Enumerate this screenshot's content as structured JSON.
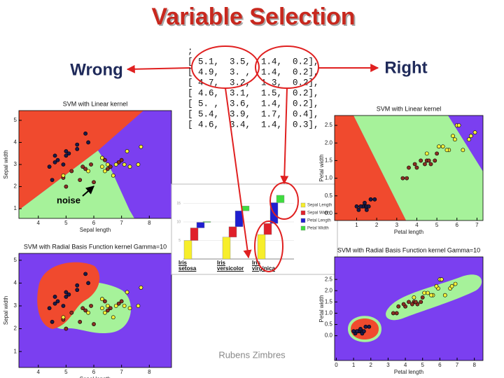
{
  "title": "Variable Selection",
  "wrong": "Wrong",
  "right": "Right",
  "noise": "noise",
  "author": "Rubens Zimbres",
  "code": [
    ";",
    "[ 5.1,  3.5,  1.4,  0.2],",
    "[ 4.9,  3. ,  1.4,  0.2],",
    "[ 4.7,  3.2,  1.3,  0.2],",
    "[ 4.6,  3.1,  1.5,  0.2],",
    "[ 5. ,  3.6,  1.4,  0.2],",
    "[ 5.4,  3.9,  1.7,  0.4],",
    "[ 4.6,  3.4,  1.4,  0.3],"
  ],
  "chart_data": [
    {
      "type": "scatter",
      "title": "SVM with Linear kernel",
      "x_label": "Sepal length",
      "y_label": "Sepal width",
      "xlim": [
        3.3,
        8.8
      ],
      "ylim": [
        0.56,
        5.44
      ],
      "xticks": [
        4,
        5,
        6,
        7,
        8
      ],
      "yticks": [
        1,
        2,
        3,
        4,
        5
      ],
      "series": [
        {
          "color": "#1a1a4a",
          "x": [
            5.1,
            4.9,
            4.7,
            4.6,
            5.0,
            5.4,
            4.6,
            5.0,
            4.4,
            5.4,
            5.8,
            5.7,
            4.5
          ],
          "values": [
            3.5,
            3.0,
            3.2,
            3.1,
            3.6,
            3.9,
            3.4,
            3.4,
            2.9,
            3.7,
            4.0,
            4.4,
            2.3
          ]
        },
        {
          "color": "#8b2f23",
          "x": [
            7.0,
            6.4,
            6.9,
            5.5,
            6.5,
            5.7,
            6.3,
            4.9,
            6.6,
            5.2,
            5.0,
            5.9,
            6.0,
            5.6
          ],
          "values": [
            3.2,
            3.2,
            3.1,
            2.3,
            2.8,
            2.8,
            3.3,
            2.4,
            2.9,
            2.7,
            2.0,
            3.0,
            2.2,
            2.9
          ]
        },
        {
          "color": "#f4f03a",
          "x": [
            6.3,
            5.8,
            7.1,
            6.3,
            6.5,
            7.6,
            4.9,
            7.3,
            6.7,
            7.2,
            7.7,
            6.4,
            6.8
          ],
          "values": [
            3.3,
            2.7,
            3.0,
            2.9,
            3.0,
            3.0,
            2.5,
            2.9,
            2.5,
            3.6,
            3.8,
            2.7,
            3.0
          ]
        }
      ]
    },
    {
      "type": "scatter",
      "title": "SVM with Radial Basis Function kernel Gamma=10",
      "xlim": [
        3.3,
        8.8
      ],
      "ylim": [
        0.3,
        5.3
      ],
      "xticks": [
        4,
        5,
        6,
        7,
        8
      ],
      "yticks": [
        1,
        2,
        3,
        4,
        5
      ],
      "x_label": "Sepal length",
      "y_label": "Sepal width",
      "series": [
        {
          "color": "#1a1a4a",
          "x": [
            5.1,
            4.9,
            4.7,
            4.6,
            5.0,
            5.4,
            4.6,
            5.0,
            4.4,
            5.4,
            5.8,
            5.7,
            4.5
          ],
          "values": [
            3.5,
            3.0,
            3.2,
            3.1,
            3.6,
            3.9,
            3.4,
            3.4,
            2.9,
            3.7,
            4.0,
            4.4,
            2.3
          ]
        },
        {
          "color": "#8b2f23",
          "x": [
            7.0,
            6.4,
            6.9,
            5.5,
            6.5,
            5.7,
            6.3,
            4.9,
            6.6,
            5.2,
            5.0,
            5.9,
            6.0,
            5.6
          ],
          "values": [
            3.2,
            3.2,
            3.1,
            2.3,
            2.8,
            2.8,
            3.3,
            2.4,
            2.9,
            2.7,
            2.0,
            3.0,
            2.2,
            2.9
          ]
        },
        {
          "color": "#f4f03a",
          "x": [
            6.3,
            5.8,
            7.1,
            6.3,
            6.5,
            7.6,
            4.9,
            7.3,
            6.7,
            7.2,
            7.7,
            6.4,
            6.8
          ],
          "values": [
            3.3,
            2.7,
            3.0,
            2.9,
            3.0,
            3.0,
            2.5,
            2.9,
            2.5,
            3.6,
            3.8,
            2.7,
            3.0
          ]
        }
      ]
    },
    {
      "type": "bar",
      "categories": [
        "Iris setosa",
        "Iris versicolor",
        "Iris virginica"
      ],
      "ylim": [
        0,
        17
      ],
      "yticks": [
        5,
        10,
        15
      ],
      "series": [
        {
          "name": "Sepal Length",
          "color": "#f7ee2a",
          "values": [
            5.0,
            5.9,
            6.6
          ]
        },
        {
          "name": "Sepal Width",
          "color": "#e0202a",
          "values": [
            3.4,
            2.8,
            3.0
          ]
        },
        {
          "name": "Petal Length",
          "color": "#1f1fd0",
          "values": [
            1.5,
            4.3,
            5.6
          ]
        },
        {
          "name": "Petal Width",
          "color": "#3fdc3f",
          "values": [
            0.2,
            1.3,
            2.0
          ]
        }
      ]
    },
    {
      "type": "scatter",
      "title": "SVM with Linear kernel",
      "x_label": "Petal length",
      "y_label": "Petal width",
      "xlim": [
        -0.1,
        7.3
      ],
      "ylim": [
        -0.2,
        2.78
      ],
      "xticks": [
        1,
        2,
        3,
        4,
        5,
        6,
        7
      ],
      "yticks": [
        {
          "value": 0,
          "label": "0.0"
        },
        {
          "value": 0.5,
          "label": "0.5"
        },
        {
          "value": 1,
          "label": "1.0"
        },
        {
          "value": 1.5,
          "label": "1.5"
        },
        {
          "value": 2,
          "label": "2.0"
        },
        {
          "value": 2.5,
          "label": "2.5"
        }
      ],
      "series": [
        {
          "color": "#1a1a4a",
          "x": [
            1.4,
            1.3,
            1.5,
            1.4,
            1.7,
            1.5,
            1.6,
            1.1,
            1.2,
            1.9,
            1.0
          ],
          "values": [
            0.2,
            0.2,
            0.2,
            0.3,
            0.4,
            0.1,
            0.2,
            0.1,
            0.2,
            0.4,
            0.2
          ]
        },
        {
          "color": "#8b2f23",
          "x": [
            4.7,
            4.5,
            4.9,
            4.0,
            4.6,
            3.3,
            3.9,
            3.5,
            4.2,
            3.6,
            4.4,
            5.0
          ],
          "values": [
            1.4,
            1.5,
            1.5,
            1.3,
            1.5,
            1.0,
            1.4,
            1.0,
            1.5,
            1.3,
            1.4,
            1.7
          ]
        },
        {
          "color": "#f4f03a",
          "x": [
            6.0,
            5.1,
            5.9,
            5.6,
            5.8,
            6.6,
            4.5,
            6.3,
            6.1,
            5.3,
            6.7,
            6.9,
            5.5
          ],
          "values": [
            2.5,
            1.9,
            2.1,
            1.8,
            2.2,
            2.1,
            1.7,
            1.8,
            2.5,
            1.9,
            2.2,
            2.3,
            1.8
          ]
        }
      ]
    },
    {
      "type": "scatter",
      "title": "SVM with Radial Basis Function kernel Gamma=10",
      "x_label": "Petal length",
      "y_label": "Petal width",
      "xlim": [
        -0.1,
        8.5
      ],
      "ylim": [
        -1.1,
        3.5
      ],
      "xticks": [
        0,
        1,
        2,
        3,
        4,
        5,
        6,
        7,
        8
      ],
      "yticks": [
        {
          "value": 0,
          "label": "0.0"
        },
        {
          "value": 0.5,
          "label": "0.5"
        },
        {
          "value": 1,
          "label": "1.0"
        },
        {
          "value": 1.5,
          "label": "1.5"
        },
        {
          "value": 2,
          "label": "2.0"
        },
        {
          "value": 2.5,
          "label": "2.5"
        }
      ],
      "series": [
        {
          "color": "#1a1a4a",
          "x": [
            1.4,
            1.3,
            1.5,
            1.4,
            1.7,
            1.5,
            1.6,
            1.1,
            1.2,
            1.9,
            1.0
          ],
          "values": [
            0.2,
            0.2,
            0.2,
            0.3,
            0.4,
            0.1,
            0.2,
            0.1,
            0.2,
            0.4,
            0.2
          ]
        },
        {
          "color": "#8b2f23",
          "x": [
            4.7,
            4.5,
            4.9,
            4.0,
            4.6,
            3.3,
            3.9,
            3.5,
            4.2,
            3.6,
            4.4,
            5.0
          ],
          "values": [
            1.4,
            1.5,
            1.5,
            1.3,
            1.5,
            1.0,
            1.4,
            1.0,
            1.5,
            1.3,
            1.4,
            1.7
          ]
        },
        {
          "color": "#f4f03a",
          "x": [
            6.0,
            5.1,
            5.9,
            5.6,
            5.8,
            6.6,
            4.5,
            6.3,
            6.1,
            5.3,
            6.7,
            6.9,
            5.5
          ],
          "values": [
            2.5,
            1.9,
            2.1,
            1.8,
            2.2,
            2.1,
            1.7,
            1.8,
            2.5,
            1.9,
            2.2,
            2.3,
            1.8
          ]
        }
      ]
    }
  ]
}
